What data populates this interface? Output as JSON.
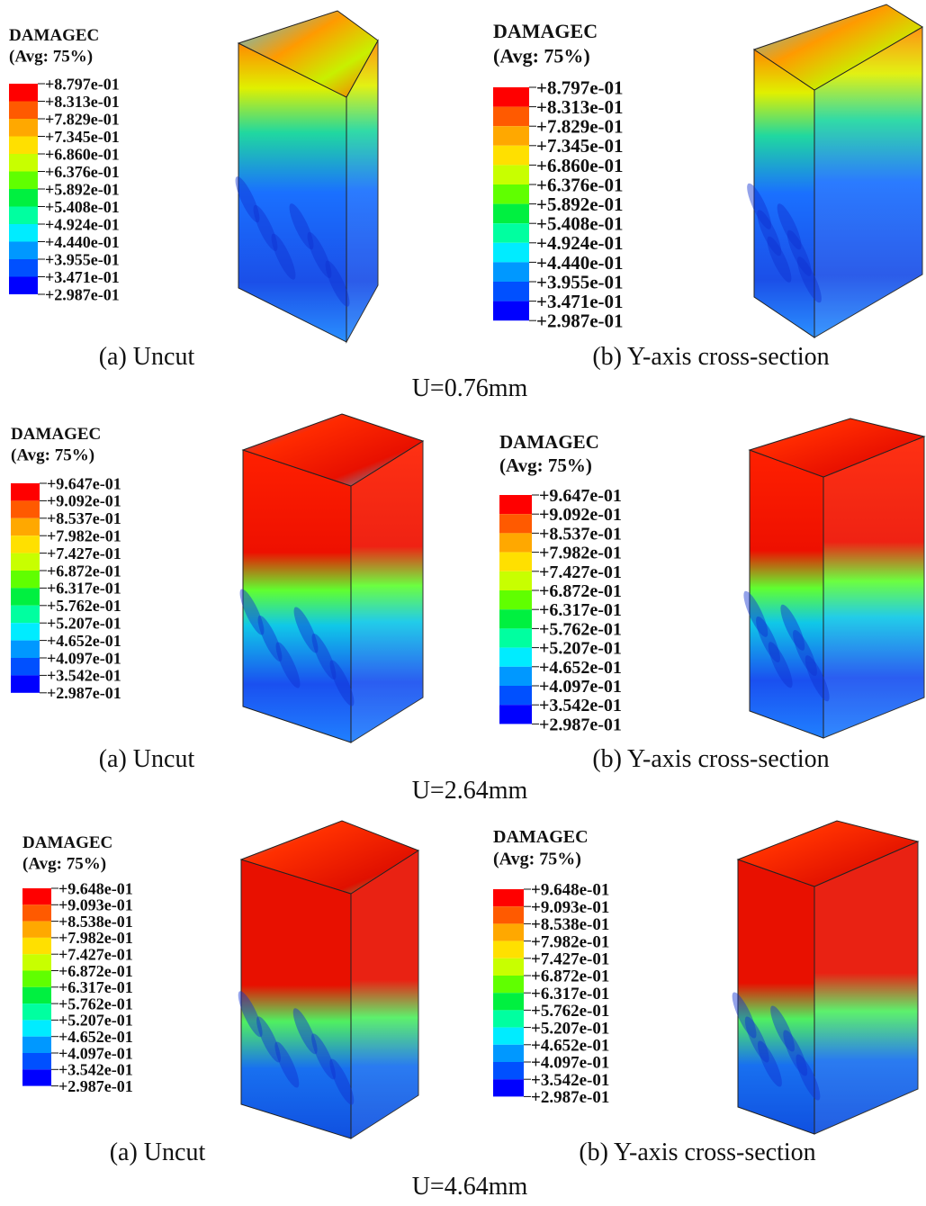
{
  "rows": [
    {
      "label": "U=0.76mm",
      "panels": [
        {
          "legend_title": "DAMAGEC",
          "legend_subtitle": "(Avg: 75%)",
          "legend_labels": [
            "+8.797e-01",
            "+8.313e-01",
            "+7.829e-01",
            "+7.345e-01",
            "+6.860e-01",
            "+6.376e-01",
            "+5.892e-01",
            "+5.408e-01",
            "+4.924e-01",
            "+4.440e-01",
            "+3.955e-01",
            "+3.471e-01",
            "+2.987e-01"
          ],
          "caption": "(a) Uncut"
        },
        {
          "legend_title": "DAMAGEC",
          "legend_subtitle": "(Avg: 75%)",
          "legend_labels": [
            "+8.797e-01",
            "+8.313e-01",
            "+7.829e-01",
            "+7.345e-01",
            "+6.860e-01",
            "+6.376e-01",
            "+5.892e-01",
            "+5.408e-01",
            "+4.924e-01",
            "+4.440e-01",
            "+3.955e-01",
            "+3.471e-01",
            "+2.987e-01"
          ],
          "caption": "(b) Y-axis cross-section"
        }
      ]
    },
    {
      "label": "U=2.64mm",
      "panels": [
        {
          "legend_title": "DAMAGEC",
          "legend_subtitle": "(Avg: 75%)",
          "legend_labels": [
            "+9.647e-01",
            "+9.092e-01",
            "+8.537e-01",
            "+7.982e-01",
            "+7.427e-01",
            "+6.872e-01",
            "+6.317e-01",
            "+5.762e-01",
            "+5.207e-01",
            "+4.652e-01",
            "+4.097e-01",
            "+3.542e-01",
            "+2.987e-01"
          ],
          "caption": "(a) Uncut"
        },
        {
          "legend_title": "DAMAGEC",
          "legend_subtitle": "(Avg: 75%)",
          "legend_labels": [
            "+9.647e-01",
            "+9.092e-01",
            "+8.537e-01",
            "+7.982e-01",
            "+7.427e-01",
            "+6.872e-01",
            "+6.317e-01",
            "+5.762e-01",
            "+5.207e-01",
            "+4.652e-01",
            "+4.097e-01",
            "+3.542e-01",
            "+2.987e-01"
          ],
          "caption": "(b) Y-axis cross-section"
        }
      ]
    },
    {
      "label": "U=4.64mm",
      "panels": [
        {
          "legend_title": "DAMAGEC",
          "legend_subtitle": "(Avg: 75%)",
          "legend_labels": [
            "+9.648e-01",
            "+9.093e-01",
            "+8.538e-01",
            "+7.982e-01",
            "+7.427e-01",
            "+6.872e-01",
            "+6.317e-01",
            "+5.762e-01",
            "+5.207e-01",
            "+4.652e-01",
            "+4.097e-01",
            "+3.542e-01",
            "+2.987e-01"
          ],
          "caption": "(a) Uncut"
        },
        {
          "legend_title": "DAMAGEC",
          "legend_subtitle": "(Avg: 75%)",
          "legend_labels": [
            "+9.648e-01",
            "+9.093e-01",
            "+8.538e-01",
            "+7.982e-01",
            "+7.427e-01",
            "+6.872e-01",
            "+6.317e-01",
            "+5.762e-01",
            "+5.207e-01",
            "+4.652e-01",
            "+4.097e-01",
            "+3.542e-01",
            "+2.987e-01"
          ],
          "caption": "(b) Y-axis cross-section"
        }
      ]
    }
  ]
}
